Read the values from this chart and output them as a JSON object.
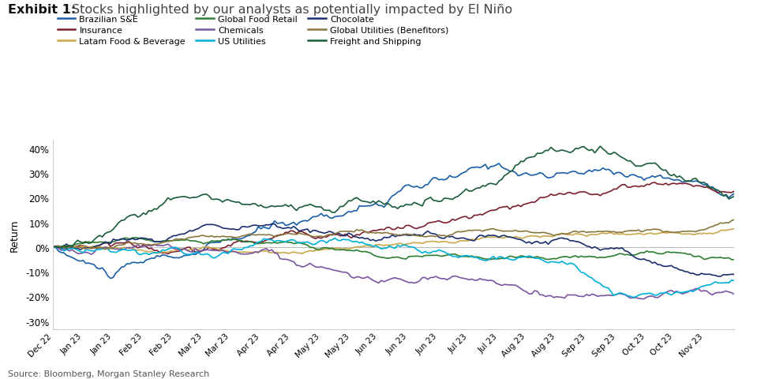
{
  "title_exhibit": "Exhibit 1:",
  "title_main": "  Stocks highlighted by our analysts as potentially impacted by El Niño",
  "source": "Source: Bloomberg, Morgan Stanley Research",
  "ylabel": "Return",
  "ytick_vals": [
    -0.3,
    -0.2,
    -0.1,
    0.0,
    0.1,
    0.2,
    0.3,
    0.4
  ],
  "ytick_labels": [
    "-30%",
    "-20%",
    "-10%",
    "0%",
    "10%",
    "20%",
    "30%",
    "40%"
  ],
  "xtick_data": [
    [
      "Dec 22",
      0
    ],
    [
      "Jan 23",
      11
    ],
    [
      "Jan 23",
      22
    ],
    [
      "Feb 23",
      33
    ],
    [
      "Feb 23",
      44
    ],
    [
      "Mar 23",
      55
    ],
    [
      "Mar 23",
      65
    ],
    [
      "Apr 23",
      76
    ],
    [
      "Apr 23",
      87
    ],
    [
      "May 23",
      98
    ],
    [
      "May 23",
      109
    ],
    [
      "Jun 23",
      119
    ],
    [
      "Jun 23",
      130
    ],
    [
      "Jun 23",
      141
    ],
    [
      "Jul 23",
      152
    ],
    [
      "Jul 23",
      163
    ],
    [
      "Aug 23",
      173
    ],
    [
      "Aug 23",
      184
    ],
    [
      "Sep 23",
      195
    ],
    [
      "Sep 23",
      206
    ],
    [
      "Oct 23",
      217
    ],
    [
      "Oct 23",
      227
    ],
    [
      "Nov 23",
      238
    ]
  ],
  "series": {
    "Brazilian S&E": {
      "color": "#1a5fa8",
      "lw": 1.2
    },
    "Insurance": {
      "color": "#7b2030",
      "lw": 1.2
    },
    "Latam Food & Beverage": {
      "color": "#c9a84c",
      "lw": 1.2
    },
    "Global Food Retail": {
      "color": "#2e7d32",
      "lw": 1.2
    },
    "Chemicals": {
      "color": "#7b55a0",
      "lw": 1.2
    },
    "US Utilities": {
      "color": "#00b0d8",
      "lw": 1.2
    },
    "Chocolate": {
      "color": "#1a2f6e",
      "lw": 1.2
    },
    "Global Utilities (Benefitors)": {
      "color": "#8a7840",
      "lw": 1.2
    },
    "Freight and Shipping": {
      "color": "#1a5c3a",
      "lw": 1.2
    }
  },
  "legend_order": [
    "Brazilian S&E",
    "Insurance",
    "Latam Food & Beverage",
    "Global Food Retail",
    "Chemicals",
    "US Utilities",
    "Chocolate",
    "Global Utilities (Benefitors)",
    "Freight and Shipping"
  ],
  "ylim": [
    -0.335,
    0.435
  ],
  "n_points": 250
}
